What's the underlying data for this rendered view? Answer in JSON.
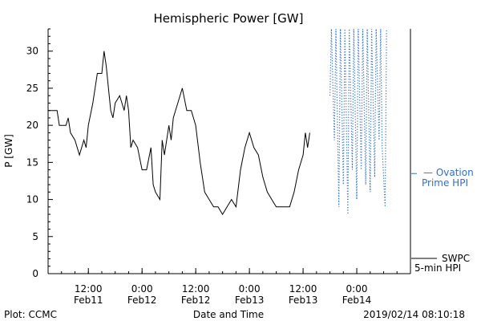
{
  "chart_data": {
    "type": "line",
    "title": "Hemispheric Power [GW]",
    "ylabel": "P [GW]",
    "xlabel": "Date and Time",
    "ylim": [
      0,
      33
    ],
    "yticks": [
      0,
      5,
      10,
      15,
      20,
      25,
      30
    ],
    "xlim": [
      "2019-02-11 03:00",
      "2019-02-14 12:00"
    ],
    "xticks": [
      {
        "t": "2019-02-11 12:00",
        "top": "12:00",
        "bottom": "Feb11"
      },
      {
        "t": "2019-02-12 00:00",
        "top": "0:00",
        "bottom": "Feb12"
      },
      {
        "t": "2019-02-12 12:00",
        "top": "12:00",
        "bottom": "Feb12"
      },
      {
        "t": "2019-02-13 00:00",
        "top": "0:00",
        "bottom": "Feb13"
      },
      {
        "t": "2019-02-13 12:00",
        "top": "12:00",
        "bottom": "Feb13"
      },
      {
        "t": "2019-02-14 00:00",
        "top": "0:00",
        "bottom": "Feb14"
      }
    ],
    "series": [
      {
        "name": "SWPC 5-min HPI",
        "color": "#000000",
        "style": "solid",
        "points": [
          [
            "2019-02-11 03:00",
            22
          ],
          [
            "2019-02-11 05:00",
            22
          ],
          [
            "2019-02-11 05:30",
            20
          ],
          [
            "2019-02-11 07:00",
            20
          ],
          [
            "2019-02-11 07:30",
            21
          ],
          [
            "2019-02-11 08:00",
            19
          ],
          [
            "2019-02-11 09:00",
            18
          ],
          [
            "2019-02-11 10:00",
            16
          ],
          [
            "2019-02-11 11:00",
            18
          ],
          [
            "2019-02-11 11:30",
            17
          ],
          [
            "2019-02-11 12:00",
            20
          ],
          [
            "2019-02-11 13:00",
            23
          ],
          [
            "2019-02-11 14:00",
            27
          ],
          [
            "2019-02-11 15:00",
            27
          ],
          [
            "2019-02-11 15:30",
            30
          ],
          [
            "2019-02-11 16:00",
            28
          ],
          [
            "2019-02-11 17:00",
            22
          ],
          [
            "2019-02-11 17:30",
            21
          ],
          [
            "2019-02-11 18:00",
            23
          ],
          [
            "2019-02-11 19:00",
            24
          ],
          [
            "2019-02-11 20:00",
            22
          ],
          [
            "2019-02-11 20:30",
            24
          ],
          [
            "2019-02-11 21:00",
            22
          ],
          [
            "2019-02-11 21:30",
            17
          ],
          [
            "2019-02-11 22:00",
            18
          ],
          [
            "2019-02-11 23:00",
            17
          ],
          [
            "2019-02-12 00:00",
            14
          ],
          [
            "2019-02-12 01:00",
            14
          ],
          [
            "2019-02-12 02:00",
            17
          ],
          [
            "2019-02-12 02:30",
            12
          ],
          [
            "2019-02-12 03:00",
            11
          ],
          [
            "2019-02-12 04:00",
            10
          ],
          [
            "2019-02-12 04:30",
            18
          ],
          [
            "2019-02-12 05:00",
            16
          ],
          [
            "2019-02-12 06:00",
            20
          ],
          [
            "2019-02-12 06:30",
            18
          ],
          [
            "2019-02-12 07:00",
            21
          ],
          [
            "2019-02-12 08:00",
            23
          ],
          [
            "2019-02-12 09:00",
            25
          ],
          [
            "2019-02-12 10:00",
            22
          ],
          [
            "2019-02-12 11:00",
            22
          ],
          [
            "2019-02-12 12:00",
            20
          ],
          [
            "2019-02-12 13:00",
            15
          ],
          [
            "2019-02-12 14:00",
            11
          ],
          [
            "2019-02-12 15:00",
            10
          ],
          [
            "2019-02-12 16:00",
            9
          ],
          [
            "2019-02-12 17:00",
            9
          ],
          [
            "2019-02-12 18:00",
            8
          ],
          [
            "2019-02-12 19:00",
            9
          ],
          [
            "2019-02-12 20:00",
            10
          ],
          [
            "2019-02-12 21:00",
            9
          ],
          [
            "2019-02-12 22:00",
            14
          ],
          [
            "2019-02-12 23:00",
            17
          ],
          [
            "2019-02-13 00:00",
            19
          ],
          [
            "2019-02-13 01:00",
            17
          ],
          [
            "2019-02-13 02:00",
            16
          ],
          [
            "2019-02-13 03:00",
            13
          ],
          [
            "2019-02-13 04:00",
            11
          ],
          [
            "2019-02-13 05:00",
            10
          ],
          [
            "2019-02-13 06:00",
            9
          ],
          [
            "2019-02-13 07:00",
            9
          ],
          [
            "2019-02-13 09:00",
            9
          ],
          [
            "2019-02-13 10:00",
            11
          ],
          [
            "2019-02-13 11:00",
            14
          ],
          [
            "2019-02-13 12:00",
            16
          ],
          [
            "2019-02-13 12:30",
            19
          ],
          [
            "2019-02-13 13:00",
            17
          ],
          [
            "2019-02-13 13:30",
            19
          ]
        ]
      },
      {
        "name": "Ovation Prime HPI",
        "color": "#2f6fd0",
        "style": "dotted",
        "points": [
          [
            "2019-02-13 18:00",
            24
          ],
          [
            "2019-02-13 18:20",
            33
          ],
          [
            "2019-02-13 19:00",
            18
          ],
          [
            "2019-02-13 19:20",
            33
          ],
          [
            "2019-02-13 20:00",
            9
          ],
          [
            "2019-02-13 20:20",
            33
          ],
          [
            "2019-02-13 21:00",
            12
          ],
          [
            "2019-02-13 21:20",
            33
          ],
          [
            "2019-02-13 22:00",
            8
          ],
          [
            "2019-02-13 22:20",
            33
          ],
          [
            "2019-02-13 23:00",
            14
          ],
          [
            "2019-02-13 23:20",
            33
          ],
          [
            "2019-02-14 00:00",
            10
          ],
          [
            "2019-02-14 00:20",
            33
          ],
          [
            "2019-02-14 01:00",
            14
          ],
          [
            "2019-02-14 01:20",
            33
          ],
          [
            "2019-02-14 02:00",
            12
          ],
          [
            "2019-02-14 02:20",
            33
          ],
          [
            "2019-02-14 03:00",
            11
          ],
          [
            "2019-02-14 03:20",
            33
          ],
          [
            "2019-02-14 04:00",
            13
          ],
          [
            "2019-02-14 04:20",
            33
          ],
          [
            "2019-02-14 05:00",
            18
          ],
          [
            "2019-02-14 05:20",
            33
          ],
          [
            "2019-02-14 05:40",
            17
          ],
          [
            "2019-02-14 06:20",
            9
          ],
          [
            "2019-02-14 06:40",
            33
          ]
        ]
      }
    ],
    "annotations": {
      "ovation_label_1": "— Ovation",
      "ovation_label_2": "Prime HPI",
      "swpc_label_1": "SWPC",
      "swpc_label_2": "5-min HPI",
      "plot_credit": "Plot: CCMC",
      "timestamp": "2019/02/14 08:10:18"
    },
    "grid": false,
    "legend": "right"
  }
}
